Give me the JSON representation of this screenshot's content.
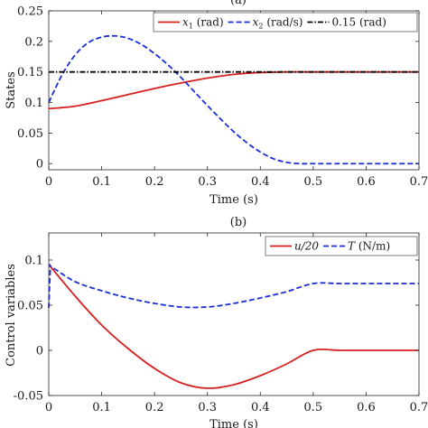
{
  "chart_data": [
    {
      "type": "line",
      "panel_label": "(a)",
      "xlabel": "Time (s)",
      "ylabel": "States",
      "xlim": [
        0,
        0.7
      ],
      "ylim": [
        -0.01,
        0.25
      ],
      "xticks": [
        0,
        0.1,
        0.2,
        0.3,
        0.4,
        0.5,
        0.6,
        0.7
      ],
      "xtick_labels": [
        "0",
        "0.1",
        "0.2",
        "0.3",
        "0.4",
        "0.5",
        "0.6",
        "0.7"
      ],
      "yticks": [
        0,
        0.05,
        0.1,
        0.15,
        0.2,
        0.25
      ],
      "ytick_labels": [
        "0",
        "0.05",
        "0.1",
        "0.15",
        "0.2",
        "0.25"
      ],
      "grid": false,
      "legend_position": "top-center",
      "series": [
        {
          "name": "x1 (rad)",
          "legend_var": "x",
          "legend_sub": "1",
          "legend_unit": " (rad)",
          "color": "#d62020",
          "dash": "solid",
          "x": [
            0,
            0.05,
            0.1,
            0.15,
            0.2,
            0.25,
            0.3,
            0.35,
            0.4,
            0.45,
            0.5,
            0.55,
            0.6,
            0.65,
            0.7
          ],
          "y": [
            0.09,
            0.094,
            0.103,
            0.113,
            0.123,
            0.132,
            0.14,
            0.146,
            0.149,
            0.15,
            0.15,
            0.15,
            0.15,
            0.15,
            0.15
          ]
        },
        {
          "name": "x2 (rad/s)",
          "legend_var": "x",
          "legend_sub": "2",
          "legend_unit": " (rad/s)",
          "color": "#1a2fd6",
          "dash": "dashed",
          "x": [
            0,
            0.025,
            0.05,
            0.075,
            0.1,
            0.125,
            0.15,
            0.175,
            0.2,
            0.225,
            0.25,
            0.275,
            0.3,
            0.325,
            0.35,
            0.375,
            0.4,
            0.425,
            0.45,
            0.475,
            0.5,
            0.55,
            0.6,
            0.65,
            0.7
          ],
          "y": [
            0.1,
            0.145,
            0.178,
            0.198,
            0.207,
            0.209,
            0.205,
            0.195,
            0.18,
            0.162,
            0.141,
            0.118,
            0.095,
            0.073,
            0.052,
            0.034,
            0.019,
            0.008,
            0.002,
            0.0,
            0.0,
            0.0,
            0.0,
            0.0,
            0.0
          ]
        },
        {
          "name": "0.15 (rad)",
          "legend_var": "",
          "legend_sub": "",
          "legend_unit": "0.15 (rad)",
          "color": "#000000",
          "dash": "dashdot",
          "x": [
            0,
            0.7
          ],
          "y": [
            0.15,
            0.15
          ]
        }
      ]
    },
    {
      "type": "line",
      "panel_label": "(b)",
      "xlabel": "Time (s)",
      "ylabel": "Control variables",
      "xlim": [
        0,
        0.7
      ],
      "ylim": [
        -0.05,
        0.13
      ],
      "xticks": [
        0,
        0.1,
        0.2,
        0.3,
        0.4,
        0.5,
        0.6,
        0.7
      ],
      "xtick_labels": [
        "0",
        "0.1",
        "0.2",
        "0.3",
        "0.4",
        "0.5",
        "0.6",
        "0.7"
      ],
      "yticks": [
        -0.05,
        0,
        0.05,
        0.1
      ],
      "ytick_labels": [
        "-0.05",
        "0",
        "0.05",
        "0.1"
      ],
      "grid": false,
      "legend_position": "top-right",
      "series": [
        {
          "name": "u/20",
          "legend_var": "u/20",
          "legend_sub": "",
          "legend_unit": "",
          "color": "#d62020",
          "dash": "solid",
          "x": [
            0,
            0.05,
            0.1,
            0.15,
            0.2,
            0.25,
            0.3,
            0.35,
            0.4,
            0.45,
            0.5,
            0.55,
            0.6,
            0.65,
            0.7
          ],
          "y": [
            0.095,
            0.06,
            0.028,
            0.002,
            -0.02,
            -0.036,
            -0.042,
            -0.038,
            -0.028,
            -0.015,
            0.0,
            0.0,
            0.0,
            0.0,
            0.0
          ]
        },
        {
          "name": "T (N/m)",
          "legend_var": "T",
          "legend_sub": "",
          "legend_unit": " (N/m)",
          "color": "#1a2fd6",
          "dash": "dashed",
          "x": [
            0,
            0.003,
            0.006,
            0.05,
            0.1,
            0.15,
            0.2,
            0.25,
            0.3,
            0.35,
            0.4,
            0.45,
            0.5,
            0.55,
            0.6,
            0.65,
            0.7
          ],
          "y": [
            0.047,
            0.09,
            0.092,
            0.076,
            0.066,
            0.058,
            0.052,
            0.048,
            0.048,
            0.052,
            0.058,
            0.065,
            0.074,
            0.074,
            0.074,
            0.074,
            0.074
          ]
        }
      ]
    }
  ]
}
